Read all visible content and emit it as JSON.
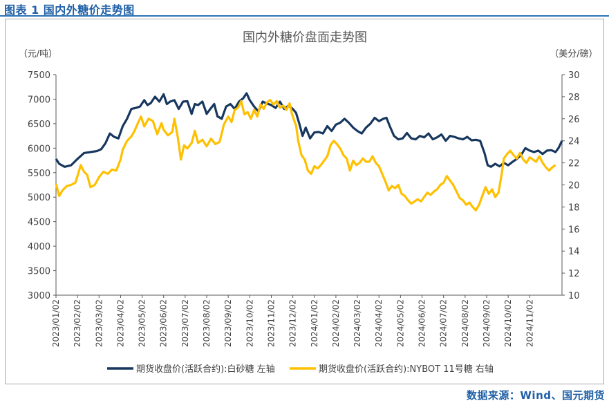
{
  "figure": {
    "caption": "图表 1 国内外糖价走势图",
    "source": "数据来源：Wind、国元期货"
  },
  "colors": {
    "series1": "#17375e",
    "series2": "#ffc000",
    "axis": "#595959",
    "text": "#404040"
  },
  "chart_data": {
    "type": "line",
    "title": "国内外糖价盘面走势图",
    "left_unit": "（元/吨）",
    "right_unit": "（美分/磅）",
    "left_ylim": [
      3000,
      7500
    ],
    "left_ticks": [
      "7500",
      "7000",
      "6500",
      "6000",
      "5500",
      "5000",
      "4500",
      "4000",
      "3500",
      "3000"
    ],
    "right_ylim": [
      10,
      30
    ],
    "right_ticks": [
      "30",
      "28",
      "26",
      "24",
      "22",
      "20",
      "18",
      "16",
      "14",
      "12",
      "10"
    ],
    "x_labels": [
      "2023/01/02",
      "2023/02/02",
      "2023/03/02",
      "2023/04/02",
      "2023/05/02",
      "2023/06/02",
      "2023/07/02",
      "2023/08/02",
      "2023/09/02",
      "2023/10/02",
      "2023/11/02",
      "2023/12/02",
      "2024/01/02",
      "2024/02/02",
      "2024/03/02",
      "2024/04/02",
      "2024/05/02",
      "2024/06/02",
      "2024/07/02",
      "2024/08/02",
      "2024/09/02",
      "2024/10/02",
      "2024/11/02"
    ],
    "x_span_months": [
      0,
      23.5
    ],
    "series": [
      {
        "name": "期货收盘价(活跃合约):白砂糖  左轴",
        "axis": "left",
        "points": [
          [
            0,
            5780
          ],
          [
            0.15,
            5680
          ],
          [
            0.4,
            5620
          ],
          [
            0.7,
            5650
          ],
          [
            1.0,
            5780
          ],
          [
            1.3,
            5900
          ],
          [
            1.6,
            5920
          ],
          [
            1.9,
            5940
          ],
          [
            2.1,
            5980
          ],
          [
            2.3,
            6100
          ],
          [
            2.5,
            6300
          ],
          [
            2.7,
            6230
          ],
          [
            2.9,
            6200
          ],
          [
            3.1,
            6450
          ],
          [
            3.3,
            6600
          ],
          [
            3.5,
            6800
          ],
          [
            3.7,
            6820
          ],
          [
            3.9,
            6850
          ],
          [
            4.1,
            6980
          ],
          [
            4.25,
            6880
          ],
          [
            4.4,
            6920
          ],
          [
            4.6,
            7050
          ],
          [
            4.8,
            6950
          ],
          [
            5.0,
            7100
          ],
          [
            5.15,
            6900
          ],
          [
            5.3,
            6950
          ],
          [
            5.5,
            6980
          ],
          [
            5.7,
            6800
          ],
          [
            5.9,
            6950
          ],
          [
            6.1,
            6960
          ],
          [
            6.3,
            6700
          ],
          [
            6.45,
            6900
          ],
          [
            6.6,
            6880
          ],
          [
            6.8,
            6950
          ],
          [
            7.0,
            6700
          ],
          [
            7.2,
            6820
          ],
          [
            7.35,
            6900
          ],
          [
            7.5,
            6650
          ],
          [
            7.7,
            6600
          ],
          [
            7.9,
            6850
          ],
          [
            8.1,
            6900
          ],
          [
            8.3,
            6800
          ],
          [
            8.5,
            6950
          ],
          [
            8.7,
            7020
          ],
          [
            8.85,
            7120
          ],
          [
            9.0,
            6980
          ],
          [
            9.2,
            6850
          ],
          [
            9.4,
            6750
          ],
          [
            9.6,
            6950
          ],
          [
            9.8,
            6910
          ],
          [
            10.0,
            6880
          ],
          [
            10.2,
            6820
          ],
          [
            10.4,
            6950
          ],
          [
            10.6,
            6800
          ],
          [
            10.8,
            6870
          ],
          [
            11.0,
            6800
          ],
          [
            11.15,
            6720
          ],
          [
            11.3,
            6500
          ],
          [
            11.45,
            6250
          ],
          [
            11.6,
            6420
          ],
          [
            11.8,
            6200
          ],
          [
            12.0,
            6320
          ],
          [
            12.2,
            6330
          ],
          [
            12.4,
            6300
          ],
          [
            12.6,
            6450
          ],
          [
            12.8,
            6350
          ],
          [
            13.0,
            6480
          ],
          [
            13.2,
            6520
          ],
          [
            13.4,
            6600
          ],
          [
            13.6,
            6520
          ],
          [
            13.8,
            6420
          ],
          [
            14.0,
            6350
          ],
          [
            14.2,
            6300
          ],
          [
            14.4,
            6420
          ],
          [
            14.6,
            6500
          ],
          [
            14.8,
            6620
          ],
          [
            15.0,
            6550
          ],
          [
            15.2,
            6600
          ],
          [
            15.35,
            6620
          ],
          [
            15.5,
            6450
          ],
          [
            15.7,
            6250
          ],
          [
            15.9,
            6180
          ],
          [
            16.1,
            6200
          ],
          [
            16.3,
            6310
          ],
          [
            16.5,
            6200
          ],
          [
            16.7,
            6180
          ],
          [
            16.9,
            6250
          ],
          [
            17.1,
            6220
          ],
          [
            17.3,
            6300
          ],
          [
            17.5,
            6180
          ],
          [
            17.7,
            6220
          ],
          [
            17.9,
            6280
          ],
          [
            18.1,
            6150
          ],
          [
            18.3,
            6250
          ],
          [
            18.5,
            6230
          ],
          [
            18.7,
            6200
          ],
          [
            18.9,
            6180
          ],
          [
            19.1,
            6230
          ],
          [
            19.3,
            6160
          ],
          [
            19.5,
            6170
          ],
          [
            19.7,
            6150
          ],
          [
            19.9,
            5900
          ],
          [
            20.05,
            5650
          ],
          [
            20.2,
            5620
          ],
          [
            20.4,
            5680
          ],
          [
            20.6,
            5630
          ],
          [
            20.8,
            5700
          ],
          [
            21.0,
            5650
          ],
          [
            21.2,
            5720
          ],
          [
            21.4,
            5780
          ],
          [
            21.6,
            5860
          ],
          [
            21.8,
            6000
          ],
          [
            22.0,
            5950
          ],
          [
            22.2,
            5920
          ],
          [
            22.4,
            5950
          ],
          [
            22.6,
            5880
          ],
          [
            22.8,
            5950
          ],
          [
            23.0,
            5960
          ],
          [
            23.2,
            5920
          ],
          [
            23.35,
            6010
          ],
          [
            23.5,
            6150
          ]
        ]
      },
      {
        "name": "期货收盘价(活跃合约):NYBOT 11号糖  右轴",
        "axis": "right",
        "points": [
          [
            0,
            20.1
          ],
          [
            0.15,
            19.0
          ],
          [
            0.3,
            19.5
          ],
          [
            0.5,
            19.9
          ],
          [
            0.7,
            20.0
          ],
          [
            0.9,
            20.2
          ],
          [
            1.0,
            20.8
          ],
          [
            1.15,
            21.8
          ],
          [
            1.3,
            21.2
          ],
          [
            1.45,
            20.9
          ],
          [
            1.6,
            19.8
          ],
          [
            1.8,
            20.0
          ],
          [
            2.0,
            20.7
          ],
          [
            2.2,
            21.2
          ],
          [
            2.4,
            21.0
          ],
          [
            2.6,
            21.4
          ],
          [
            2.8,
            21.3
          ],
          [
            3.0,
            22.3
          ],
          [
            3.1,
            23.2
          ],
          [
            3.3,
            24.0
          ],
          [
            3.5,
            24.4
          ],
          [
            3.65,
            24.9
          ],
          [
            3.8,
            25.6
          ],
          [
            3.95,
            26.2
          ],
          [
            4.1,
            25.3
          ],
          [
            4.3,
            26.0
          ],
          [
            4.5,
            25.8
          ],
          [
            4.7,
            24.6
          ],
          [
            4.9,
            25.6
          ],
          [
            5.0,
            25.0
          ],
          [
            5.2,
            24.5
          ],
          [
            5.4,
            24.8
          ],
          [
            5.5,
            26.0
          ],
          [
            5.65,
            24.4
          ],
          [
            5.8,
            22.3
          ],
          [
            5.95,
            23.6
          ],
          [
            6.1,
            23.3
          ],
          [
            6.3,
            23.8
          ],
          [
            6.45,
            24.9
          ],
          [
            6.6,
            23.8
          ],
          [
            6.8,
            24.1
          ],
          [
            7.0,
            23.5
          ],
          [
            7.2,
            24.2
          ],
          [
            7.4,
            23.7
          ],
          [
            7.6,
            23.9
          ],
          [
            7.8,
            25.5
          ],
          [
            8.0,
            26.2
          ],
          [
            8.15,
            25.7
          ],
          [
            8.3,
            26.8
          ],
          [
            8.45,
            27.0
          ],
          [
            8.6,
            27.6
          ],
          [
            8.75,
            26.4
          ],
          [
            8.9,
            26.6
          ],
          [
            9.05,
            26.0
          ],
          [
            9.2,
            26.8
          ],
          [
            9.35,
            26.2
          ],
          [
            9.5,
            27.3
          ],
          [
            9.65,
            26.9
          ],
          [
            9.8,
            27.5
          ],
          [
            9.95,
            27.7
          ],
          [
            10.1,
            27.3
          ],
          [
            10.25,
            27.6
          ],
          [
            10.4,
            27.0
          ],
          [
            10.55,
            27.2
          ],
          [
            10.7,
            26.8
          ],
          [
            10.85,
            27.4
          ],
          [
            10.95,
            26.5
          ],
          [
            11.05,
            25.9
          ],
          [
            11.15,
            25.4
          ],
          [
            11.25,
            24.0
          ],
          [
            11.4,
            22.7
          ],
          [
            11.55,
            22.3
          ],
          [
            11.7,
            21.3
          ],
          [
            11.85,
            21.0
          ],
          [
            12.0,
            21.7
          ],
          [
            12.15,
            21.5
          ],
          [
            12.3,
            21.8
          ],
          [
            12.45,
            22.2
          ],
          [
            12.6,
            22.6
          ],
          [
            12.75,
            23.6
          ],
          [
            12.9,
            24.0
          ],
          [
            13.05,
            23.7
          ],
          [
            13.2,
            23.3
          ],
          [
            13.35,
            22.7
          ],
          [
            13.5,
            22.4
          ],
          [
            13.65,
            21.3
          ],
          [
            13.8,
            22.2
          ],
          [
            13.95,
            21.8
          ],
          [
            14.1,
            22.0
          ],
          [
            14.25,
            22.4
          ],
          [
            14.4,
            22.1
          ],
          [
            14.55,
            22.1
          ],
          [
            14.7,
            22.6
          ],
          [
            14.85,
            22.0
          ],
          [
            15.0,
            21.7
          ],
          [
            15.15,
            21.0
          ],
          [
            15.3,
            20.3
          ],
          [
            15.45,
            19.5
          ],
          [
            15.6,
            19.9
          ],
          [
            15.75,
            19.7
          ],
          [
            15.9,
            20.0
          ],
          [
            16.05,
            19.2
          ],
          [
            16.2,
            19.0
          ],
          [
            16.35,
            18.6
          ],
          [
            16.5,
            18.3
          ],
          [
            16.65,
            18.5
          ],
          [
            16.8,
            18.7
          ],
          [
            16.95,
            18.5
          ],
          [
            17.1,
            18.9
          ],
          [
            17.25,
            19.3
          ],
          [
            17.4,
            19.1
          ],
          [
            17.55,
            19.4
          ],
          [
            17.7,
            19.6
          ],
          [
            17.85,
            20.0
          ],
          [
            18.0,
            20.2
          ],
          [
            18.15,
            20.8
          ],
          [
            18.3,
            20.4
          ],
          [
            18.45,
            20.0
          ],
          [
            18.6,
            19.4
          ],
          [
            18.75,
            18.8
          ],
          [
            18.9,
            18.6
          ],
          [
            19.05,
            18.2
          ],
          [
            19.2,
            18.4
          ],
          [
            19.35,
            18.0
          ],
          [
            19.5,
            17.7
          ],
          [
            19.65,
            18.2
          ],
          [
            19.8,
            19.0
          ],
          [
            19.95,
            19.8
          ],
          [
            20.1,
            19.2
          ],
          [
            20.25,
            19.6
          ],
          [
            20.4,
            18.9
          ],
          [
            20.55,
            19.3
          ],
          [
            20.7,
            21.0
          ],
          [
            20.8,
            22.4
          ],
          [
            20.95,
            22.8
          ],
          [
            21.1,
            23.1
          ],
          [
            21.25,
            22.7
          ],
          [
            21.4,
            22.4
          ],
          [
            21.55,
            22.9
          ],
          [
            21.7,
            22.3
          ],
          [
            21.85,
            22.0
          ],
          [
            22.0,
            22.5
          ],
          [
            22.15,
            22.3
          ],
          [
            22.3,
            22.1
          ],
          [
            22.45,
            22.6
          ],
          [
            22.6,
            22.0
          ],
          [
            22.75,
            21.6
          ],
          [
            22.9,
            21.3
          ],
          [
            23.05,
            21.6
          ],
          [
            23.2,
            21.8
          ]
        ]
      }
    ]
  }
}
